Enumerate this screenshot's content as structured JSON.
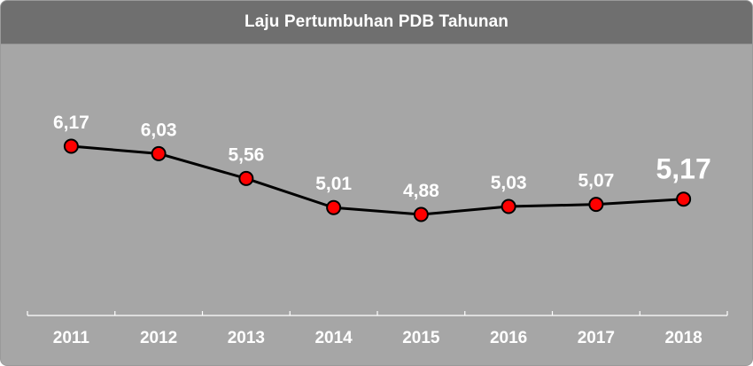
{
  "chart_data": {
    "type": "line",
    "title": "Laju Pertumbuhan PDB Tahunan",
    "categories": [
      "2011",
      "2012",
      "2013",
      "2014",
      "2015",
      "2016",
      "2017",
      "2018"
    ],
    "values": [
      6.17,
      6.03,
      5.56,
      5.01,
      4.88,
      5.03,
      5.07,
      5.17
    ],
    "value_labels": [
      "6,17",
      "6,03",
      "5,56",
      "5,01",
      "4,88",
      "5,03",
      "5,07",
      "5,17"
    ],
    "highlight_index": 7,
    "grid": false,
    "legend": "none",
    "colors": {
      "header_bg": "#6f6f6f",
      "plot_bg": "#a6a6a6",
      "line": "#000000",
      "marker_fill": "#ff0000",
      "marker_stroke": "#000000",
      "text": "#ffffff",
      "axis": "#ffffff"
    }
  }
}
